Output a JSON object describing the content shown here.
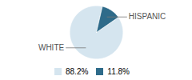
{
  "chart_data": {
    "type": "pie",
    "categories": [
      "WHITE",
      "HISPANIC"
    ],
    "values": [
      88.2,
      11.8
    ],
    "value_labels": [
      "88.2%",
      "11.8%"
    ],
    "colors": [
      "#d5e5ef",
      "#2e6b8a"
    ],
    "legend": "bottom"
  }
}
